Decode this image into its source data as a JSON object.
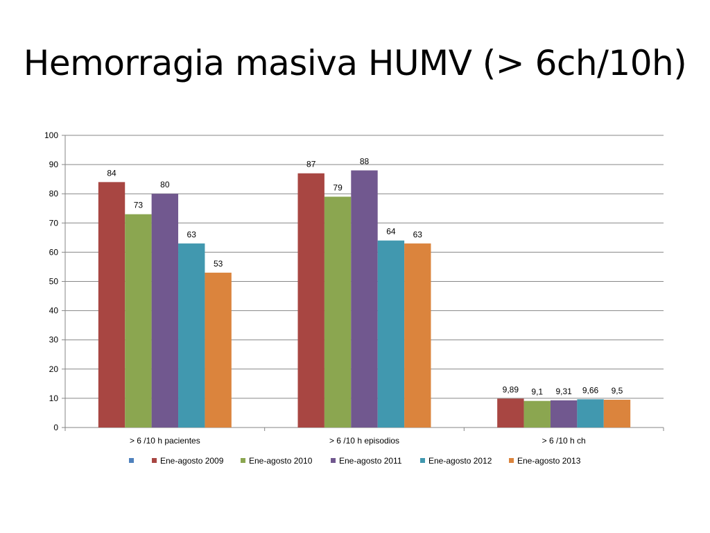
{
  "slide": {
    "title": "Hemorragia masiva HUMV (> 6ch/10h)"
  },
  "chart_data": {
    "type": "bar",
    "categories": [
      "> 6 /10 h pacientes",
      "> 6 /10 h episodios",
      "> 6 /10 h ch"
    ],
    "ylim": [
      0,
      100
    ],
    "yticks": [
      0,
      10,
      20,
      30,
      40,
      50,
      60,
      70,
      80,
      90,
      100
    ],
    "grid": true,
    "legend_position": "bottom",
    "series": [
      {
        "name": "",
        "color": "#4F81BD",
        "values": [
          null,
          null,
          null
        ],
        "labels": [
          "",
          "",
          ""
        ]
      },
      {
        "name": "Ene-agosto 2009",
        "color": "#A84642",
        "values": [
          84,
          87,
          9.89
        ],
        "labels": [
          "84",
          "87",
          "9,89"
        ]
      },
      {
        "name": "Ene-agosto 2010",
        "color": "#8BA650",
        "values": [
          73,
          79,
          9.1
        ],
        "labels": [
          "73",
          "79",
          "9,1"
        ]
      },
      {
        "name": "Ene-agosto 2011",
        "color": "#71588F",
        "values": [
          80,
          88,
          9.31
        ],
        "labels": [
          "80",
          "88",
          "9,31"
        ]
      },
      {
        "name": "Ene-agosto 2012",
        "color": "#4198AF",
        "values": [
          63,
          64,
          9.66
        ],
        "labels": [
          "63",
          "64",
          "9,66"
        ]
      },
      {
        "name": "Ene-agosto 2013",
        "color": "#DB843D",
        "values": [
          53,
          63,
          9.5
        ],
        "labels": [
          "53",
          "63",
          "9,5"
        ]
      }
    ]
  }
}
